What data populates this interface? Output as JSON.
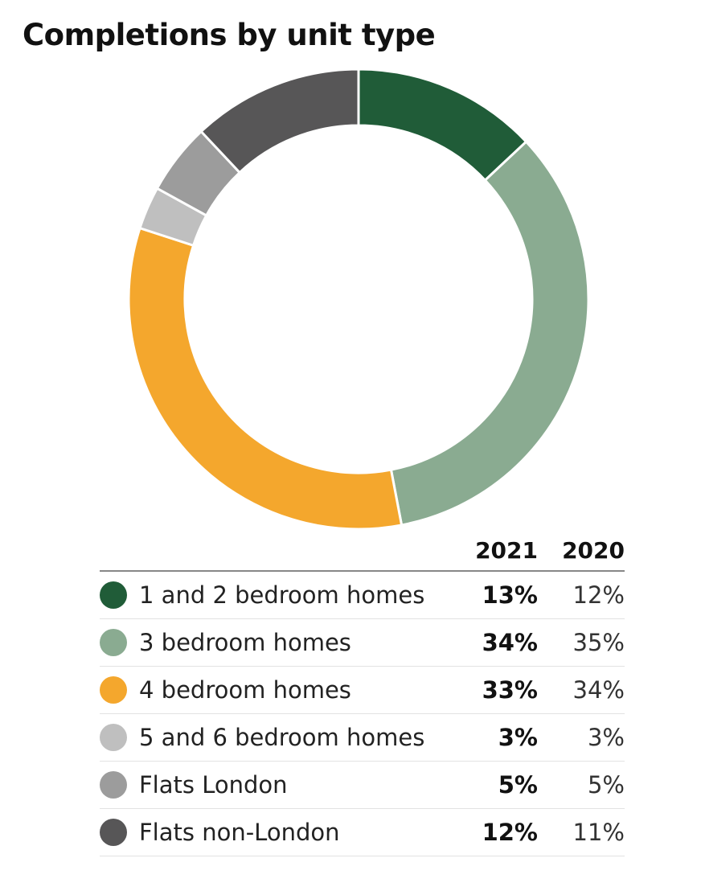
{
  "chart_data": {
    "type": "pie",
    "title": "Completions by unit type",
    "columns": [
      "2021",
      "2020"
    ],
    "categories": [
      "1 and 2 bedroom homes",
      "3 bedroom homes",
      "4 bedroom homes",
      "5 and 6 bedroom homes",
      "Flats London",
      "Flats non-London"
    ],
    "colors": [
      "#205c38",
      "#8aab91",
      "#f4a72d",
      "#bfbfbf",
      "#9c9c9c",
      "#575657"
    ],
    "values_2021": [
      13,
      34,
      33,
      3,
      5,
      12
    ],
    "values_2020": [
      12,
      35,
      34,
      3,
      5,
      11
    ],
    "labels_2021": [
      "13%",
      "34%",
      "33%",
      "3%",
      "5%",
      "12%"
    ],
    "labels_2020": [
      "12%",
      "35%",
      "34%",
      "3%",
      "5%",
      "11%"
    ],
    "donut_series": "2021",
    "start_angle_deg": 0,
    "direction": "clockwise"
  }
}
